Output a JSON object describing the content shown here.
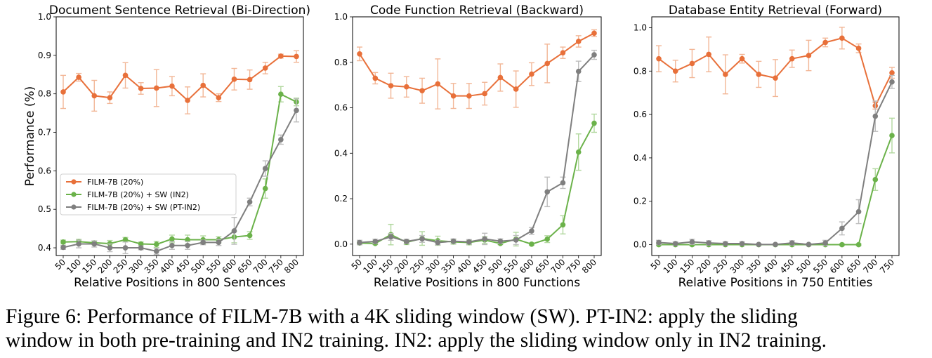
{
  "caption": {
    "line1": "Figure 6: Performance of FILM-7B with a 4K sliding window (SW). PT-IN2: apply the sliding",
    "line2": "window in both pre-training and IN2 training. IN2: apply the sliding window only in IN2 training."
  },
  "colors": {
    "film": "#e8703a",
    "sw_in2": "#6bb24a",
    "sw_pt_in2": "#7f7f7f",
    "film_err": "#f2b696",
    "sw_in2_err": "#b2d89f",
    "sw_pt_in2_err": "#bdbdbd"
  },
  "legend": [
    "FILM-7B (20%)",
    "FILM-7B (20%) + SW (IN2)",
    "FILM-7B (20%) + SW (PT-IN2)"
  ],
  "chart_data": [
    {
      "type": "line",
      "title": "Document Sentence Retrieval (Bi-Direction)",
      "xlabel": "Relative Positions in 800 Sentences",
      "ylabel": "Performance (%)",
      "x": [
        50,
        100,
        150,
        200,
        250,
        300,
        350,
        400,
        450,
        500,
        550,
        600,
        650,
        700,
        750,
        800
      ],
      "xlim": [
        50,
        800
      ],
      "ylim": [
        0.38,
        1.0
      ],
      "yticks": [
        0.4,
        0.5,
        0.6,
        0.7,
        0.8,
        0.9,
        1.0
      ],
      "ytick_labels": [
        "0.4",
        "0.5",
        "0.6",
        "0.7",
        "0.8",
        "0.9",
        "1.0"
      ],
      "legend_position": "lower-left",
      "series": [
        {
          "name": "FILM-7B (20%)",
          "values": [
            0.805,
            0.843,
            0.795,
            0.79,
            0.848,
            0.814,
            0.815,
            0.82,
            0.783,
            0.822,
            0.79,
            0.838,
            0.837,
            0.867,
            0.898,
            0.897
          ],
          "err": [
            0.043,
            0.01,
            0.04,
            0.015,
            0.033,
            0.015,
            0.048,
            0.025,
            0.035,
            0.03,
            0.01,
            0.028,
            0.025,
            0.015,
            0.005,
            0.015
          ]
        },
        {
          "name": "FILM-7B (20%) + SW (IN2)",
          "values": [
            0.415,
            0.416,
            0.413,
            0.411,
            0.421,
            0.41,
            0.409,
            0.423,
            0.421,
            0.421,
            0.421,
            0.428,
            0.432,
            0.554,
            0.799,
            0.779
          ],
          "err": [
            0.005,
            0.006,
            0.005,
            0.008,
            0.006,
            0.005,
            0.008,
            0.01,
            0.012,
            0.01,
            0.008,
            0.015,
            0.01,
            0.025,
            0.02,
            0.01
          ]
        },
        {
          "name": "FILM-7B (20%) + SW (PT-IN2)",
          "values": [
            0.401,
            0.41,
            0.41,
            0.4,
            0.4,
            0.4,
            0.391,
            0.406,
            0.406,
            0.414,
            0.414,
            0.444,
            0.519,
            0.606,
            0.681,
            0.757
          ],
          "err": [
            0.005,
            0.01,
            0.008,
            0.01,
            0.015,
            0.005,
            0.008,
            0.01,
            0.01,
            0.006,
            0.008,
            0.035,
            0.01,
            0.02,
            0.012,
            0.03
          ]
        }
      ]
    },
    {
      "type": "line",
      "title": "Code Function Retrieval (Backward)",
      "xlabel": "Relative Positions in 800 Functions",
      "ylabel": "",
      "x": [
        50,
        100,
        150,
        200,
        250,
        300,
        350,
        400,
        450,
        500,
        550,
        600,
        650,
        700,
        750,
        800
      ],
      "xlim": [
        50,
        800
      ],
      "ylim": [
        -0.05,
        1.0
      ],
      "yticks": [
        0.0,
        0.2,
        0.4,
        0.6,
        0.8,
        1.0
      ],
      "ytick_labels": [
        "0.0",
        "0.2",
        "0.4",
        "0.6",
        "0.8",
        "1.0"
      ],
      "series": [
        {
          "name": "FILM-7B (20%)",
          "values": [
            0.837,
            0.73,
            0.697,
            0.692,
            0.675,
            0.705,
            0.652,
            0.652,
            0.662,
            0.733,
            0.682,
            0.748,
            0.795,
            0.842,
            0.892,
            0.928
          ],
          "err": [
            0.03,
            0.025,
            0.055,
            0.045,
            0.055,
            0.11,
            0.055,
            0.055,
            0.05,
            0.06,
            0.08,
            0.05,
            0.085,
            0.025,
            0.025,
            0.015
          ]
        },
        {
          "name": "FILM-7B (20%) + SW (IN2)",
          "values": [
            0.005,
            0.003,
            0.042,
            0.008,
            0.025,
            0.015,
            0.01,
            0.007,
            0.018,
            0.003,
            0.022,
            0.0,
            0.022,
            0.085,
            0.405,
            0.532
          ],
          "err": [
            0.005,
            0.005,
            0.045,
            0.01,
            0.03,
            0.02,
            0.01,
            0.01,
            0.015,
            0.005,
            0.03,
            0.005,
            0.015,
            0.04,
            0.08,
            0.04
          ]
        },
        {
          "name": "FILM-7B (20%) + SW (PT-IN2)",
          "values": [
            0.007,
            0.012,
            0.032,
            0.012,
            0.023,
            0.007,
            0.013,
            0.01,
            0.023,
            0.013,
            0.018,
            0.058,
            0.23,
            0.27,
            0.76,
            0.833
          ],
          "err": [
            0.01,
            0.01,
            0.015,
            0.01,
            0.015,
            0.01,
            0.01,
            0.01,
            0.025,
            0.01,
            0.02,
            0.015,
            0.065,
            0.025,
            0.045,
            0.02
          ]
        }
      ]
    },
    {
      "type": "line",
      "title": "Database Entity Retrieval (Forward)",
      "xlabel": "Relative Positions in 750 Entities",
      "ylabel": "",
      "x": [
        50,
        100,
        150,
        200,
        250,
        300,
        350,
        400,
        450,
        500,
        550,
        600,
        650,
        700,
        750
      ],
      "xlim": [
        50,
        750
      ],
      "ylim": [
        -0.05,
        1.05
      ],
      "yticks": [
        0.0,
        0.2,
        0.4,
        0.6,
        0.8,
        1.0
      ],
      "ytick_labels": [
        "0.0",
        "0.2",
        "0.4",
        "0.6",
        "0.8",
        "1.0"
      ],
      "series": [
        {
          "name": "FILM-7B (20%)",
          "values": [
            0.857,
            0.8,
            0.835,
            0.877,
            0.785,
            0.857,
            0.785,
            0.768,
            0.857,
            0.872,
            0.932,
            0.952,
            0.905,
            0.64,
            0.792
          ],
          "err": [
            0.06,
            0.05,
            0.065,
            0.08,
            0.09,
            0.02,
            0.06,
            0.085,
            0.04,
            0.07,
            0.02,
            0.05,
            0.02,
            0.015,
            0.025
          ]
        },
        {
          "name": "FILM-7B (20%) + SW (IN2)",
          "values": [
            0.0,
            0.0,
            0.0,
            0.0,
            0.0,
            0.0,
            0.0,
            0.0,
            0.0,
            0.0,
            0.0,
            0.0,
            0.0,
            0.3,
            0.503
          ],
          "err": [
            0.004,
            0.004,
            0.004,
            0.004,
            0.004,
            0.004,
            0.004,
            0.004,
            0.004,
            0.004,
            0.004,
            0.004,
            0.004,
            0.05,
            0.08
          ]
        },
        {
          "name": "FILM-7B (20%) + SW (PT-IN2)",
          "values": [
            0.01,
            0.005,
            0.013,
            0.008,
            0.005,
            0.005,
            0.001,
            0.001,
            0.008,
            0.001,
            0.008,
            0.075,
            0.152,
            0.592,
            0.75
          ],
          "err": [
            0.01,
            0.008,
            0.012,
            0.01,
            0.008,
            0.008,
            0.004,
            0.004,
            0.01,
            0.004,
            0.012,
            0.03,
            0.055,
            0.07,
            0.03
          ]
        }
      ]
    }
  ]
}
